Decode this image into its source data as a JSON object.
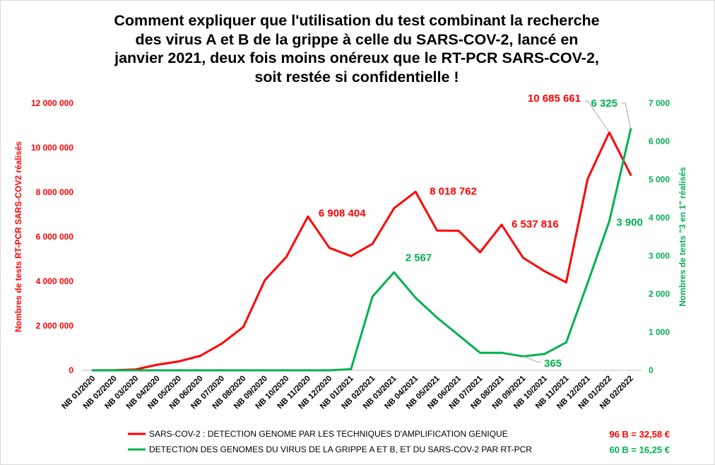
{
  "chart_data": {
    "type": "line",
    "title": "Comment expliquer que l'utilisation du test combinant la recherche des virus A et B de la grippe à celle du SARS-COV-2, lancé en janvier 2021, deux fois moins onéreux que le RT-PCR SARS-COV-2, soit restée si confidentielle !",
    "title_lines": [
      "Comment expliquer que l'utilisation du test combinant la recherche",
      "des virus A et B de la grippe à celle du SARS-COV-2, lancé en",
      "janvier 2021, deux fois moins onéreux que le RT-PCR SARS-COV-2,",
      "soit restée si confidentielle !"
    ],
    "categories": [
      "NB 01/2020",
      "NB 02/2020",
      "NB 03/2020",
      "NB 04/2020",
      "NB 05/2020",
      "NB 06/2020",
      "NB 07/2020",
      "NB 08/2020",
      "NB 09/2020",
      "NB 10/2020",
      "NB 11/2020",
      "NB 12/2020",
      "NB 01/2021",
      "NB 02/2021",
      "NB 03/2021",
      "NB 04/2021",
      "NB 05/2021",
      "NB 06/2021",
      "NB 07/2021",
      "NB 08/2021",
      "NB 09/2021",
      "NB 10/2021",
      "NB 11/2021",
      "NB 12/2021",
      "NB 01/2022",
      "NB 02/2022"
    ],
    "y_left": {
      "label": "Nombres de tests RT-PCR SARS-COV2 réalisés",
      "ylim": [
        0,
        12000000
      ],
      "ticks": [
        0,
        2000000,
        4000000,
        6000000,
        8000000,
        10000000,
        12000000
      ],
      "tick_labels": [
        "0",
        "2 000 000",
        "4 000 000",
        "6 000 000",
        "8 000 000",
        "10 000 000",
        "12 000 000"
      ],
      "color": "#ff0000"
    },
    "y_right": {
      "label": "Nombres de tests \"3 en 1\" réalisés",
      "ylim": [
        0,
        7000
      ],
      "ticks": [
        0,
        1000,
        2000,
        3000,
        4000,
        5000,
        6000,
        7000
      ],
      "tick_labels": [
        "0",
        "1 000",
        "2 000",
        "3 000",
        "4 000",
        "5 000",
        "6 000",
        "7 000"
      ],
      "color": "#00b050"
    },
    "grid": false,
    "legend_position": "bottom",
    "series": [
      {
        "name": "SARS-COV-2 : DETECTION GENOME PAR LES TECHNIQUES D'AMPLIFICATION GENIQUE",
        "axis": "left",
        "color": "#ff0000",
        "legend_extra": "96 B = 32,58 €",
        "values": [
          0,
          5000,
          40000,
          250000,
          400000,
          650000,
          1200000,
          1950000,
          4050000,
          5100000,
          6908404,
          5500000,
          5130000,
          5680000,
          7280000,
          8018762,
          6280000,
          6270000,
          5300000,
          6537816,
          5050000,
          4450000,
          3950000,
          8600000,
          10685661,
          8780000
        ]
      },
      {
        "name": "DETECTION DES GENOMES DU VIRUS DE LA GRIPPE A ET B, ET DU SARS-COV-2 PAR RT-PCR",
        "axis": "right",
        "color": "#00b050",
        "legend_extra": "60 B = 16,25 €",
        "values": [
          0,
          0,
          0,
          0,
          0,
          0,
          0,
          0,
          0,
          0,
          0,
          0,
          30,
          1930,
          2567,
          1900,
          1380,
          920,
          460,
          460,
          365,
          430,
          730,
          2290,
          3900,
          6325
        ]
      }
    ],
    "annotations": [
      {
        "series": 0,
        "index": 10,
        "text": "6 908 404"
      },
      {
        "series": 0,
        "index": 15,
        "text": "8 018 762"
      },
      {
        "series": 0,
        "index": 19,
        "text": "6 537 816"
      },
      {
        "series": 0,
        "index": 24,
        "text": "10 685 661"
      },
      {
        "series": 1,
        "index": 14,
        "text": "2 567"
      },
      {
        "series": 1,
        "index": 20,
        "text": "365"
      },
      {
        "series": 1,
        "index": 24,
        "text": "3 900"
      },
      {
        "series": 1,
        "index": 25,
        "text": "6 325"
      }
    ]
  }
}
